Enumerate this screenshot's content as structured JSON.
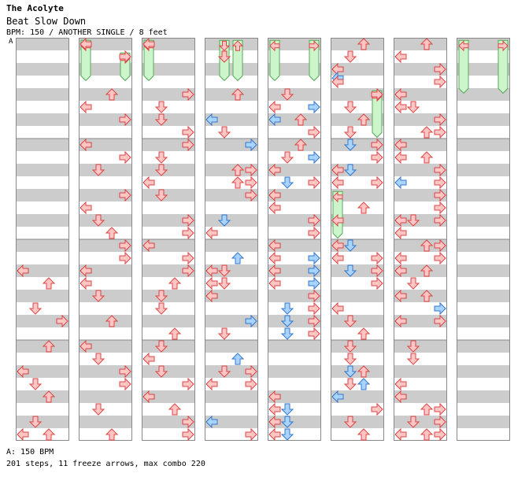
{
  "header": {
    "title": "The Acolyte",
    "song": "Beat Slow Down",
    "meta": "BPM: 150 / ANOTHER SINGLE / 8 feet",
    "speed_marker": "A"
  },
  "footer": {
    "bpm_line": "A: 150 BPM",
    "stats_line": "201 steps, 11 freeze arrows, max combo 220"
  },
  "colors": {
    "stripe": "#cccccc",
    "panel_bg": "#ffffff",
    "border": "#888888",
    "red_fill": "#ffc6c6",
    "red_stroke": "#dd4444",
    "blue_fill": "#a8d4ff",
    "blue_stroke": "#3377cc",
    "freeze_fill": "#ccf5cc",
    "freeze_stroke": "#55aa55"
  },
  "icons": {
    "left": "arrow-left-icon",
    "down": "arrow-down-icon",
    "up": "arrow-up-icon",
    "right": "arrow-right-icon"
  },
  "columns": [
    {
      "name": "column-1",
      "notes": [],
      "freezes": []
    },
    {
      "name": "column-2",
      "notes": [],
      "freezes": []
    },
    {
      "name": "column-3",
      "notes": [],
      "freezes": []
    },
    {
      "name": "column-4",
      "notes": [],
      "freezes": []
    },
    {
      "name": "column-5",
      "notes": [],
      "freezes": []
    },
    {
      "name": "column-6",
      "notes": [],
      "freezes": []
    },
    {
      "name": "column-7",
      "notes": [],
      "freezes": []
    },
    {
      "name": "column-8",
      "notes": [],
      "freezes": []
    }
  ],
  "chart_notes": [
    [
      1,
      "L",
      18.5,
      "r"
    ],
    [
      1,
      "D",
      21.5,
      "r"
    ],
    [
      1,
      "U",
      19.5,
      "r"
    ],
    [
      1,
      "R",
      22.5,
      "r"
    ],
    [
      1,
      "L",
      26.5,
      "r"
    ],
    [
      1,
      "U",
      24.5,
      "r"
    ],
    [
      1,
      "D",
      27.5,
      "r"
    ],
    [
      1,
      "U",
      28.5,
      "r"
    ],
    [
      1,
      "L",
      31.5,
      "r"
    ],
    [
      1,
      "D",
      30.5,
      "r"
    ],
    [
      1,
      "U",
      31.5,
      "r"
    ],
    [
      1,
      "L",
      32.5,
      "r"
    ],
    [
      1,
      "D",
      34.5,
      "r"
    ],
    [
      1,
      "U",
      35.5,
      "r"
    ],
    [
      2,
      "L",
      0.5,
      "r"
    ],
    [
      2,
      "R",
      1.5,
      "r"
    ],
    [
      2,
      "L",
      5.5,
      "r"
    ],
    [
      2,
      "U",
      4.5,
      "r"
    ],
    [
      2,
      "R",
      6.5,
      "r"
    ],
    [
      2,
      "L",
      8.5,
      "r"
    ],
    [
      2,
      "R",
      9.5,
      "r"
    ],
    [
      2,
      "D",
      10.5,
      "r"
    ],
    [
      2,
      "R",
      12.5,
      "r"
    ],
    [
      2,
      "L",
      13.5,
      "r"
    ],
    [
      2,
      "D",
      14.5,
      "r"
    ],
    [
      2,
      "U",
      15.5,
      "r"
    ],
    [
      2,
      "R",
      16.5,
      "r"
    ],
    [
      2,
      "L",
      18.5,
      "r"
    ],
    [
      2,
      "L",
      19.5,
      "r"
    ],
    [
      2,
      "R",
      17.5,
      "r"
    ],
    [
      2,
      "D",
      20.5,
      "r"
    ],
    [
      2,
      "U",
      22.5,
      "r"
    ],
    [
      2,
      "L",
      24.5,
      "r"
    ],
    [
      2,
      "D",
      25.5,
      "r"
    ],
    [
      2,
      "R",
      26.5,
      "r"
    ],
    [
      2,
      "R",
      27.5,
      "r"
    ],
    [
      2,
      "D",
      29.5,
      "r"
    ],
    [
      2,
      "U",
      31.5,
      "r"
    ],
    [
      2,
      "R",
      32.5,
      "r"
    ],
    [
      2,
      "D",
      34.5,
      "r"
    ],
    [
      2,
      "U",
      35.5,
      "r"
    ],
    [
      2,
      "R",
      37.5,
      "r"
    ],
    [
      3,
      "L",
      0.5,
      "r"
    ],
    [
      3,
      "R",
      4.5,
      "r"
    ],
    [
      3,
      "D",
      5.5,
      "r"
    ],
    [
      3,
      "D",
      6.5,
      "r"
    ],
    [
      3,
      "R",
      7.5,
      "r"
    ],
    [
      3,
      "R",
      8.5,
      "r"
    ],
    [
      3,
      "D",
      9.5,
      "r"
    ],
    [
      3,
      "D",
      10.5,
      "r"
    ],
    [
      3,
      "L",
      11.5,
      "r"
    ],
    [
      3,
      "D",
      12.5,
      "r"
    ],
    [
      3,
      "R",
      14.5,
      "r"
    ],
    [
      3,
      "R",
      15.5,
      "r"
    ],
    [
      3,
      "L",
      16.5,
      "r"
    ],
    [
      3,
      "R",
      17.5,
      "r"
    ],
    [
      3,
      "D",
      20.5,
      "r"
    ],
    [
      3,
      "R",
      18.5,
      "r"
    ],
    [
      3,
      "U",
      19.5,
      "r"
    ],
    [
      3,
      "D",
      21.5,
      "r"
    ],
    [
      3,
      "U",
      23.5,
      "r"
    ],
    [
      3,
      "D",
      24.5,
      "r"
    ],
    [
      3,
      "L",
      25.5,
      "r"
    ],
    [
      3,
      "D",
      26.5,
      "r"
    ],
    [
      3,
      "R",
      27.5,
      "r"
    ],
    [
      3,
      "L",
      28.5,
      "r"
    ],
    [
      3,
      "U",
      29.5,
      "r"
    ],
    [
      3,
      "R",
      30.5,
      "r"
    ],
    [
      3,
      "R",
      31.5,
      "r"
    ],
    [
      3,
      "L",
      32.5,
      "r"
    ],
    [
      3,
      "D",
      34.5,
      "r"
    ],
    [
      3,
      "R",
      35.5,
      "r"
    ],
    [
      3,
      "U",
      33.5,
      "r"
    ],
    [
      4,
      "D",
      1.5,
      "r"
    ],
    [
      4,
      "U",
      4.5,
      "r"
    ],
    [
      4,
      "L",
      6.5,
      "b"
    ],
    [
      4,
      "D",
      7.5,
      "r"
    ],
    [
      4,
      "R",
      8.5,
      "b"
    ],
    [
      4,
      "U",
      10.5,
      "r"
    ],
    [
      4,
      "R",
      10.5,
      "r"
    ],
    [
      4,
      "U",
      11.5,
      "r"
    ],
    [
      4,
      "R",
      11.5,
      "r"
    ],
    [
      4,
      "R",
      12.5,
      "r"
    ],
    [
      4,
      "D",
      14.5,
      "b"
    ],
    [
      4,
      "L",
      15.5,
      "r"
    ],
    [
      4,
      "U",
      17.5,
      "b"
    ],
    [
      4,
      "L",
      18.5,
      "r"
    ],
    [
      4,
      "D",
      18.5,
      "r"
    ],
    [
      4,
      "L",
      19.5,
      "r"
    ],
    [
      4,
      "D",
      19.5,
      "r"
    ],
    [
      4,
      "L",
      20.5,
      "r"
    ],
    [
      4,
      "R",
      22.5,
      "b"
    ],
    [
      4,
      "D",
      23.5,
      "r"
    ],
    [
      4,
      "U",
      25.5,
      "b"
    ],
    [
      4,
      "D",
      26.5,
      "r"
    ],
    [
      4,
      "R",
      26.5,
      "r"
    ],
    [
      4,
      "L",
      27.5,
      "r"
    ],
    [
      4,
      "R",
      27.5,
      "r"
    ],
    [
      4,
      "L",
      30.5,
      "b"
    ],
    [
      4,
      "R",
      31.5,
      "r"
    ],
    [
      5,
      "D",
      4.5,
      "r"
    ],
    [
      5,
      "R",
      5.5,
      "b"
    ],
    [
      5,
      "L",
      5.5,
      "r"
    ],
    [
      5,
      "U",
      6.5,
      "r"
    ],
    [
      5,
      "L",
      6.5,
      "b"
    ],
    [
      5,
      "R",
      7.5,
      "r"
    ],
    [
      5,
      "U",
      8.5,
      "r"
    ],
    [
      5,
      "R",
      9.5,
      "b"
    ],
    [
      5,
      "D",
      9.5,
      "r"
    ],
    [
      5,
      "L",
      10.5,
      "r"
    ],
    [
      5,
      "D",
      11.5,
      "b"
    ],
    [
      5,
      "R",
      11.5,
      "r"
    ],
    [
      5,
      "L",
      12.5,
      "r"
    ],
    [
      5,
      "L",
      13.5,
      "r"
    ],
    [
      5,
      "R",
      14.5,
      "r"
    ],
    [
      5,
      "R",
      15.5,
      "r"
    ],
    [
      5,
      "L",
      16.5,
      "r"
    ],
    [
      5,
      "R",
      17.5,
      "b"
    ],
    [
      5,
      "L",
      17.5,
      "r"
    ],
    [
      5,
      "R",
      18.5,
      "b"
    ],
    [
      5,
      "L",
      18.5,
      "r"
    ],
    [
      5,
      "R",
      19.5,
      "b"
    ],
    [
      5,
      "L",
      19.5,
      "r"
    ],
    [
      5,
      "R",
      20.5,
      "r"
    ],
    [
      5,
      "D",
      21.5,
      "b"
    ],
    [
      5,
      "R",
      21.5,
      "r"
    ],
    [
      5,
      "D",
      22.5,
      "b"
    ],
    [
      5,
      "R",
      22.5,
      "r"
    ],
    [
      5,
      "D",
      23.5,
      "b"
    ],
    [
      5,
      "R",
      23.5,
      "r"
    ],
    [
      5,
      "L",
      28.5,
      "r"
    ],
    [
      5,
      "L",
      29.5,
      "r"
    ],
    [
      5,
      "D",
      29.5,
      "b"
    ],
    [
      5,
      "L",
      30.5,
      "r"
    ],
    [
      5,
      "D",
      30.5,
      "b"
    ],
    [
      5,
      "L",
      31.5,
      "r"
    ],
    [
      5,
      "D",
      31.5,
      "b"
    ],
    [
      6,
      "U",
      0.5,
      "r"
    ],
    [
      6,
      "D",
      1.5,
      "r"
    ],
    [
      6,
      "L",
      2.5,
      "r"
    ],
    [
      6,
      "L",
      3.2,
      "b"
    ],
    [
      6,
      "L",
      3.5,
      "r"
    ],
    [
      6,
      "D",
      5.5,
      "r"
    ],
    [
      6,
      "R",
      4.5,
      "r"
    ],
    [
      6,
      "U",
      6.5,
      "r"
    ],
    [
      6,
      "D",
      7.5,
      "r"
    ],
    [
      6,
      "R",
      8.5,
      "r"
    ],
    [
      6,
      "D",
      8.5,
      "b"
    ],
    [
      6,
      "R",
      9.5,
      "r"
    ],
    [
      6,
      "L",
      10.5,
      "r"
    ],
    [
      6,
      "D",
      10.5,
      "b"
    ],
    [
      6,
      "L",
      11.5,
      "r"
    ],
    [
      6,
      "R",
      11.5,
      "r"
    ],
    [
      6,
      "U",
      13.5,
      "r"
    ],
    [
      6,
      "L",
      14.5,
      "r"
    ],
    [
      6,
      "L",
      16.5,
      "r"
    ],
    [
      6,
      "D",
      16.5,
      "b"
    ],
    [
      6,
      "L",
      17.5,
      "r"
    ],
    [
      6,
      "R",
      17.5,
      "r"
    ],
    [
      6,
      "D",
      18.5,
      "b"
    ],
    [
      6,
      "R",
      18.5,
      "r"
    ],
    [
      6,
      "R",
      19.5,
      "r"
    ],
    [
      6,
      "L",
      21.5,
      "r"
    ],
    [
      6,
      "D",
      22.5,
      "r"
    ],
    [
      6,
      "U",
      23.5,
      "r"
    ],
    [
      6,
      "D",
      24.5,
      "r"
    ],
    [
      6,
      "D",
      25.5,
      "r"
    ],
    [
      6,
      "U",
      26.5,
      "r"
    ],
    [
      6,
      "D",
      26.5,
      "b"
    ],
    [
      6,
      "D",
      27.5,
      "r"
    ],
    [
      6,
      "U",
      27.5,
      "b"
    ],
    [
      6,
      "L",
      28.5,
      "b"
    ],
    [
      6,
      "R",
      29.5,
      "r"
    ],
    [
      6,
      "D",
      30.5,
      "r"
    ],
    [
      6,
      "U",
      31.5,
      "r"
    ],
    [
      7,
      "U",
      0.5,
      "r"
    ],
    [
      7,
      "L",
      1.5,
      "r"
    ],
    [
      7,
      "R",
      2.5,
      "r"
    ],
    [
      7,
      "R",
      3.5,
      "r"
    ],
    [
      7,
      "L",
      4.5,
      "r"
    ],
    [
      7,
      "L",
      5.5,
      "r"
    ],
    [
      7,
      "D",
      5.5,
      "r"
    ],
    [
      7,
      "R",
      6.5,
      "r"
    ],
    [
      7,
      "U",
      7.5,
      "r"
    ],
    [
      7,
      "R",
      7.5,
      "r"
    ],
    [
      7,
      "L",
      8.5,
      "r"
    ],
    [
      7,
      "L",
      9.5,
      "r"
    ],
    [
      7,
      "U",
      9.5,
      "r"
    ],
    [
      7,
      "R",
      10.5,
      "r"
    ],
    [
      7,
      "L",
      11.5,
      "b"
    ],
    [
      7,
      "R",
      11.5,
      "r"
    ],
    [
      7,
      "R",
      12.5,
      "r"
    ],
    [
      7,
      "R",
      13.5,
      "r"
    ],
    [
      7,
      "L",
      14.5,
      "r"
    ],
    [
      7,
      "D",
      14.5,
      "r"
    ],
    [
      7,
      "R",
      14.5,
      "r"
    ],
    [
      7,
      "L",
      15.5,
      "r"
    ],
    [
      7,
      "U",
      16.5,
      "r"
    ],
    [
      7,
      "R",
      16.5,
      "r"
    ],
    [
      7,
      "L",
      17.5,
      "r"
    ],
    [
      7,
      "R",
      17.5,
      "r"
    ],
    [
      7,
      "L",
      18.5,
      "r"
    ],
    [
      7,
      "U",
      18.5,
      "r"
    ],
    [
      7,
      "D",
      19.5,
      "r"
    ],
    [
      7,
      "L",
      20.5,
      "r"
    ],
    [
      7,
      "R",
      21.5,
      "b"
    ],
    [
      7,
      "L",
      22.5,
      "r"
    ],
    [
      7,
      "R",
      22.5,
      "r"
    ],
    [
      7,
      "U",
      20.5,
      "r"
    ],
    [
      7,
      "D",
      24.5,
      "r"
    ],
    [
      7,
      "D",
      25.5,
      "r"
    ],
    [
      7,
      "L",
      27.5,
      "r"
    ],
    [
      7,
      "L",
      28.5,
      "r"
    ],
    [
      7,
      "U",
      29.5,
      "r"
    ],
    [
      7,
      "R",
      30.5,
      "r"
    ],
    [
      7,
      "D",
      30.5,
      "r"
    ],
    [
      7,
      "R",
      29.5,
      "r"
    ],
    [
      7,
      "L",
      31.5,
      "r"
    ],
    [
      7,
      "U",
      31.5,
      "r"
    ],
    [
      7,
      "D",
      32.5,
      "r"
    ],
    [
      7,
      "U",
      33.5,
      "r"
    ],
    [
      7,
      "R",
      31.5,
      "r"
    ],
    [
      7,
      "D",
      34.5,
      "r"
    ],
    [
      7,
      "U",
      35.5,
      "r"
    ]
  ],
  "chart_freezes": [
    [
      2,
      "L",
      0.2,
      3.4
    ],
    [
      2,
      "R",
      1.2,
      3.4
    ],
    [
      3,
      "L",
      0.2,
      3.4
    ],
    [
      4,
      "D",
      0.2,
      3.4
    ],
    [
      4,
      "U",
      0.2,
      3.4
    ],
    [
      5,
      "L",
      0.2,
      3.4
    ],
    [
      5,
      "R",
      0.2,
      3.4
    ],
    [
      6,
      "R",
      4.2,
      7.9
    ],
    [
      6,
      "L",
      12.2,
      15.9
    ],
    [
      8,
      "L",
      0.2,
      4.4
    ],
    [
      8,
      "R",
      0.2,
      4.4
    ]
  ]
}
